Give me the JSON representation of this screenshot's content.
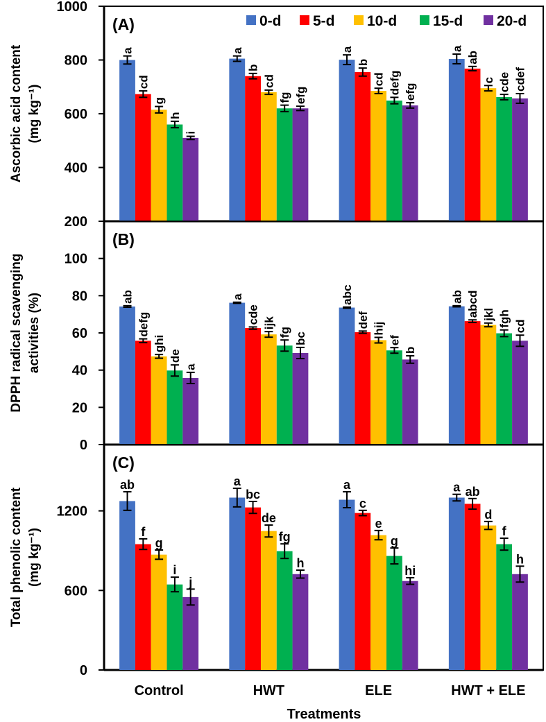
{
  "chart_data": [
    {
      "type": "bar",
      "panel_label": "(A)",
      "ylabel": [
        "Ascorbic acid content",
        "(mg kg⁻¹)"
      ],
      "ylim": [
        200,
        1000
      ],
      "yticks": [
        200,
        400,
        600,
        800,
        1000
      ],
      "categories": [
        "Control",
        "HWT",
        "ELE",
        "HWT + ELE"
      ],
      "letter_orientation": "vertical",
      "series": [
        {
          "name": "0-d",
          "color": "#4472C4",
          "values": [
            800,
            805,
            801,
            804
          ],
          "errors": [
            15,
            10,
            18,
            18
          ],
          "letters": [
            "a",
            "a",
            "a",
            "a"
          ]
        },
        {
          "name": "5-d",
          "color": "#FF0000",
          "values": [
            673,
            740,
            755,
            768
          ],
          "errors": [
            12,
            10,
            15,
            8
          ],
          "letters": [
            "cd",
            "b",
            "b",
            "ab"
          ]
        },
        {
          "name": "10-d",
          "color": "#FFC000",
          "values": [
            615,
            680,
            685,
            695
          ],
          "errors": [
            12,
            8,
            10,
            10
          ],
          "letters": [
            "g",
            "cd",
            "cd",
            "c"
          ]
        },
        {
          "name": "15-d",
          "color": "#00B050",
          "values": [
            560,
            620,
            649,
            662
          ],
          "errors": [
            12,
            12,
            12,
            10
          ],
          "letters": [
            "h",
            "fg",
            "defg",
            "cde"
          ]
        },
        {
          "name": "20-d",
          "color": "#7030A0",
          "values": [
            510,
            620,
            631,
            657
          ],
          "errors": [
            6,
            8,
            10,
            18
          ],
          "letters": [
            "i",
            "efg",
            "efg",
            "cdef"
          ]
        }
      ],
      "legend": [
        "0-d",
        "5-d",
        "10-d",
        "15-d",
        "20-d"
      ],
      "legend_placement": "top"
    },
    {
      "type": "bar",
      "panel_label": "(B)",
      "ylabel": [
        "DPPH radical scavenging",
        "activities (%)"
      ],
      "ylim": [
        0,
        120
      ],
      "yticks": [
        0,
        20,
        40,
        60,
        80,
        100
      ],
      "categories": [
        "Control",
        "HWT",
        "ELE",
        "HWT + ELE"
      ],
      "letter_orientation": "vertical",
      "series": [
        {
          "name": "0-d",
          "color": "#4472C4",
          "values": [
            74.2,
            76.2,
            73.6,
            74.3
          ],
          "errors": [
            0.4,
            0.3,
            0.3,
            0.3
          ],
          "letters": [
            "ab",
            "a",
            "abc",
            "ab"
          ]
        },
        {
          "name": "5-d",
          "color": "#FF0000",
          "values": [
            55.8,
            62.6,
            60.4,
            66.3
          ],
          "errors": [
            1.0,
            0.6,
            0.6,
            0.7
          ],
          "letters": [
            "defg",
            "cde",
            "def",
            "abcd"
          ]
        },
        {
          "name": "10-d",
          "color": "#FFC000",
          "values": [
            47.4,
            59.2,
            56.1,
            64.3
          ],
          "errors": [
            1.0,
            1.5,
            1.5,
            1.0
          ],
          "letters": [
            "ghi",
            "ijk",
            "hij",
            "jkl"
          ]
        },
        {
          "name": "15-d",
          "color": "#00B050",
          "values": [
            39.8,
            53.2,
            50.6,
            59.8
          ],
          "errors": [
            3.0,
            3.0,
            1.5,
            1.8
          ],
          "letters": [
            "de",
            "fg",
            "ef",
            "fgh"
          ]
        },
        {
          "name": "20-d",
          "color": "#7030A0",
          "values": [
            35.8,
            49.2,
            45.7,
            55.8
          ],
          "errors": [
            3.0,
            3.0,
            2.0,
            3.0
          ],
          "letters": [
            "a",
            "bc",
            "b",
            "cd"
          ]
        }
      ]
    },
    {
      "type": "bar",
      "panel_label": "(C)",
      "ylabel": [
        "Total phenolic content",
        "(mg kg⁻¹)"
      ],
      "ylim": [
        0,
        1700
      ],
      "yticks": [
        0,
        600,
        1200
      ],
      "categories": [
        "Control",
        "HWT",
        "ELE",
        "HWT + ELE"
      ],
      "xlabel": "Treatments",
      "letter_orientation": "horizontal",
      "series": [
        {
          "name": "0-d",
          "color": "#4472C4",
          "values": [
            1274,
            1300,
            1284,
            1300
          ],
          "errors": [
            70,
            70,
            60,
            25
          ],
          "letters": [
            "ab",
            "a",
            "a",
            "a"
          ]
        },
        {
          "name": "5-d",
          "color": "#FF0000",
          "values": [
            949,
            1226,
            1184,
            1253
          ],
          "errors": [
            40,
            45,
            20,
            40
          ],
          "letters": [
            "f",
            "bc",
            "c",
            "ab"
          ]
        },
        {
          "name": "10-d",
          "color": "#FFC000",
          "values": [
            870,
            1048,
            1017,
            1090
          ],
          "errors": [
            35,
            45,
            35,
            30
          ],
          "letters": [
            "g",
            "de",
            "e",
            "d"
          ]
        },
        {
          "name": "15-d",
          "color": "#00B050",
          "values": [
            645,
            896,
            860,
            949
          ],
          "errors": [
            55,
            55,
            60,
            45
          ],
          "letters": [
            "i",
            "fg",
            "g",
            "f"
          ]
        },
        {
          "name": "20-d",
          "color": "#7030A0",
          "values": [
            550,
            723,
            671,
            723
          ],
          "errors": [
            60,
            30,
            25,
            60
          ],
          "letters": [
            "j",
            "h",
            "hi",
            "h"
          ]
        }
      ]
    }
  ]
}
